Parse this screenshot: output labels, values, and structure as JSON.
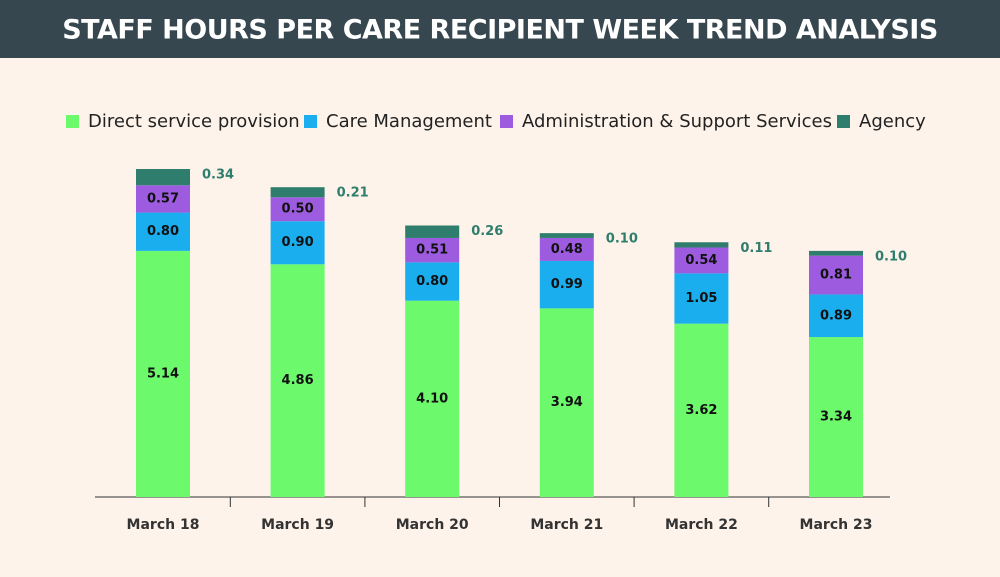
{
  "chart_data": {
    "type": "stacked-bar",
    "title": "STAFF HOURS PER CARE RECIPIENT WEEK TREND ANALYSIS",
    "categories": [
      "March 18",
      "March 19",
      "March 20",
      "March 21",
      "March 22",
      "March 23"
    ],
    "series": [
      {
        "name": "Direct service provision",
        "color": "#6cf96b",
        "values": [
          5.14,
          4.86,
          4.1,
          3.94,
          3.62,
          3.34
        ],
        "value_labels": [
          "5.14",
          "4.86",
          "4.10",
          "3.94",
          "3.62",
          "3.34"
        ]
      },
      {
        "name": "Care Management",
        "color": "#1aaeee",
        "values": [
          0.8,
          0.9,
          0.8,
          0.99,
          1.05,
          0.89
        ],
        "value_labels": [
          "0.80",
          "0.90",
          "0.80",
          "0.99",
          "1.05",
          "0.89"
        ]
      },
      {
        "name": "Administration & Support Services",
        "color": "#9d5ce0",
        "values": [
          0.57,
          0.5,
          0.51,
          0.48,
          0.54,
          0.81
        ],
        "value_labels": [
          "0.57",
          "0.50",
          "0.51",
          "0.48",
          "0.54",
          "0.81"
        ]
      },
      {
        "name": "Agency",
        "color": "#2f7d6c",
        "values": [
          0.34,
          0.21,
          0.26,
          0.1,
          0.11,
          0.1
        ],
        "value_labels": [
          "0.34",
          "0.21",
          "0.26",
          "0.10",
          "0.11",
          "0.10"
        ]
      }
    ]
  }
}
